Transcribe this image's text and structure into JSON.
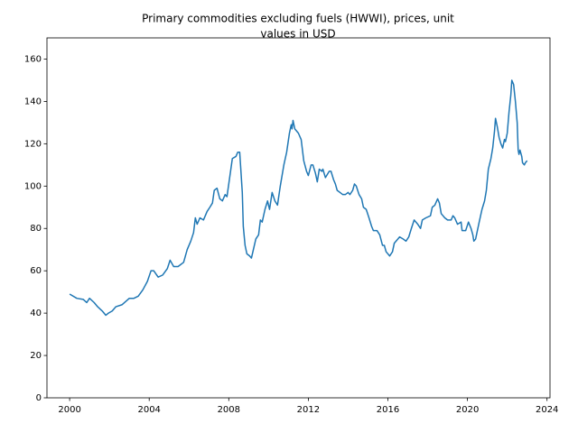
{
  "chart_data": {
    "type": "line",
    "title": [
      "Primary commodities excluding fuels (HWWI), prices, unit",
      "values in USD"
    ],
    "color": "#1f77b4",
    "grid": false,
    "xlim": [
      1998.86,
      2024.15
    ],
    "xticks": [
      2000,
      2004,
      2008,
      2012,
      2016,
      2020,
      2024
    ],
    "ylim": [
      0,
      170
    ],
    "yticks": [
      0,
      20,
      40,
      60,
      80,
      100,
      120,
      140,
      160
    ],
    "x": [
      2000.0,
      2000.36,
      2000.68,
      2000.86,
      2001.0,
      2001.23,
      2001.41,
      2001.64,
      2001.82,
      2001.95,
      2002.14,
      2002.32,
      2002.64,
      2003.0,
      2003.23,
      2003.45,
      2003.68,
      2003.91,
      2004.09,
      2004.23,
      2004.45,
      2004.68,
      2004.91,
      2005.05,
      2005.23,
      2005.45,
      2005.73,
      2005.91,
      2006.09,
      2006.23,
      2006.32,
      2006.41,
      2006.55,
      2006.73,
      2006.91,
      2007.05,
      2007.18,
      2007.27,
      2007.41,
      2007.55,
      2007.68,
      2007.82,
      2007.91,
      2008.09,
      2008.18,
      2008.36,
      2008.45,
      2008.55,
      2008.68,
      2008.73,
      2008.82,
      2008.91,
      2009.05,
      2009.14,
      2009.36,
      2009.5,
      2009.59,
      2009.68,
      2009.82,
      2009.95,
      2010.05,
      2010.18,
      2010.32,
      2010.45,
      2010.59,
      2010.77,
      2010.91,
      2011.05,
      2011.14,
      2011.18,
      2011.23,
      2011.32,
      2011.5,
      2011.64,
      2011.77,
      2011.91,
      2012.0,
      2012.14,
      2012.23,
      2012.36,
      2012.45,
      2012.55,
      2012.68,
      2012.73,
      2012.86,
      2013.05,
      2013.14,
      2013.27,
      2013.36,
      2013.45,
      2013.59,
      2013.73,
      2013.86,
      2014.0,
      2014.09,
      2014.23,
      2014.32,
      2014.41,
      2014.55,
      2014.68,
      2014.77,
      2014.91,
      2015.05,
      2015.18,
      2015.27,
      2015.45,
      2015.59,
      2015.73,
      2015.82,
      2015.91,
      2016.09,
      2016.23,
      2016.32,
      2016.5,
      2016.59,
      2016.77,
      2016.91,
      2017.05,
      2017.18,
      2017.32,
      2017.5,
      2017.64,
      2017.73,
      2017.91,
      2018.14,
      2018.23,
      2018.36,
      2018.5,
      2018.59,
      2018.68,
      2018.86,
      2019.0,
      2019.18,
      2019.27,
      2019.36,
      2019.5,
      2019.68,
      2019.73,
      2019.91,
      2020.05,
      2020.18,
      2020.27,
      2020.32,
      2020.41,
      2020.59,
      2020.73,
      2020.86,
      2020.95,
      2021.05,
      2021.18,
      2021.27,
      2021.36,
      2021.41,
      2021.5,
      2021.59,
      2021.68,
      2021.77,
      2021.86,
      2021.91,
      2022.0,
      2022.09,
      2022.18,
      2022.23,
      2022.32,
      2022.41,
      2022.5,
      2022.55,
      2022.59,
      2022.64,
      2022.73,
      2022.77,
      2022.86,
      2022.91,
      2023.0
    ],
    "values": [
      49,
      47,
      46.5,
      45,
      47,
      45,
      43,
      41,
      39,
      40,
      41,
      43,
      44,
      47,
      47,
      48,
      51,
      55,
      60,
      60,
      57,
      58,
      61,
      65,
      62,
      62,
      64,
      70,
      74,
      78,
      85,
      82,
      85,
      84,
      88,
      90,
      92,
      98,
      99,
      94,
      93,
      96,
      95,
      107,
      113,
      114,
      116,
      116,
      97,
      81,
      72,
      68,
      67,
      66,
      75,
      77,
      84,
      83,
      89,
      93,
      89,
      97,
      93,
      91,
      100,
      110,
      116,
      125,
      129,
      127,
      131,
      127,
      125,
      122,
      112,
      107,
      105,
      110,
      110,
      106,
      102,
      108,
      107,
      108,
      104,
      107,
      107,
      103,
      101,
      98,
      97,
      96,
      96,
      97,
      96,
      98,
      101,
      100,
      96,
      94,
      90,
      89,
      85,
      81,
      79,
      79,
      77,
      72,
      72,
      69,
      67,
      69,
      73,
      75,
      76,
      75,
      74,
      76,
      80,
      84,
      82,
      80,
      84,
      85,
      86,
      90,
      91,
      94,
      92,
      87,
      85,
      84,
      84,
      86,
      85,
      82,
      83,
      79,
      79,
      83,
      80,
      77,
      74,
      75,
      83,
      89,
      93,
      98,
      108,
      113,
      118,
      126,
      132,
      128,
      123,
      120,
      118,
      122,
      121,
      125,
      135,
      143,
      150,
      148,
      140,
      130,
      117,
      115,
      117,
      114,
      111,
      110,
      111,
      112
    ]
  }
}
